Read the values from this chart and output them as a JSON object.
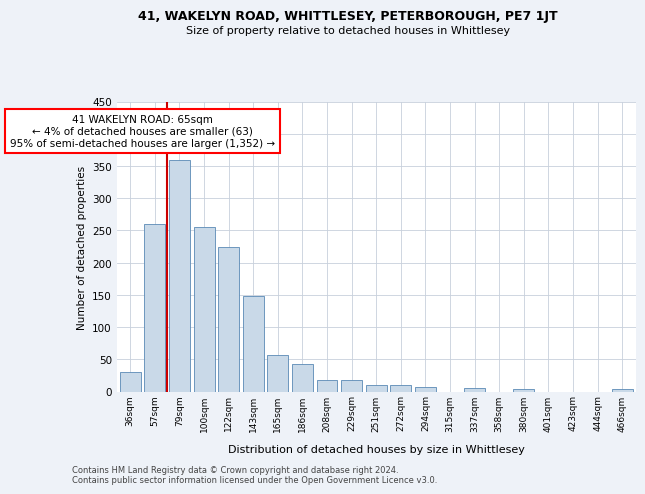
{
  "title": "41, WAKELYN ROAD, WHITTLESEY, PETERBOROUGH, PE7 1JT",
  "subtitle": "Size of property relative to detached houses in Whittlesey",
  "xlabel": "Distribution of detached houses by size in Whittlesey",
  "ylabel": "Number of detached properties",
  "footnote1": "Contains HM Land Registry data © Crown copyright and database right 2024.",
  "footnote2": "Contains public sector information licensed under the Open Government Licence v3.0.",
  "annotation_title": "41 WAKELYN ROAD: 65sqm",
  "annotation_line1": "← 4% of detached houses are smaller (63)",
  "annotation_line2": "95% of semi-detached houses are larger (1,352) →",
  "bar_color": "#c9d9e8",
  "bar_edge_color": "#5a8ab5",
  "highlight_color": "#cc0000",
  "categories": [
    "36sqm",
    "57sqm",
    "79sqm",
    "100sqm",
    "122sqm",
    "143sqm",
    "165sqm",
    "186sqm",
    "208sqm",
    "229sqm",
    "251sqm",
    "272sqm",
    "294sqm",
    "315sqm",
    "337sqm",
    "358sqm",
    "380sqm",
    "401sqm",
    "423sqm",
    "444sqm",
    "466sqm"
  ],
  "values": [
    30,
    260,
    360,
    255,
    225,
    148,
    57,
    43,
    18,
    18,
    10,
    10,
    7,
    0,
    6,
    0,
    4,
    0,
    0,
    0,
    4
  ],
  "ylim": [
    0,
    450
  ],
  "yticks": [
    0,
    50,
    100,
    150,
    200,
    250,
    300,
    350,
    400,
    450
  ],
  "bg_color": "#eef2f8",
  "plot_bg_color": "#ffffff",
  "highlight_bar_index": 1
}
